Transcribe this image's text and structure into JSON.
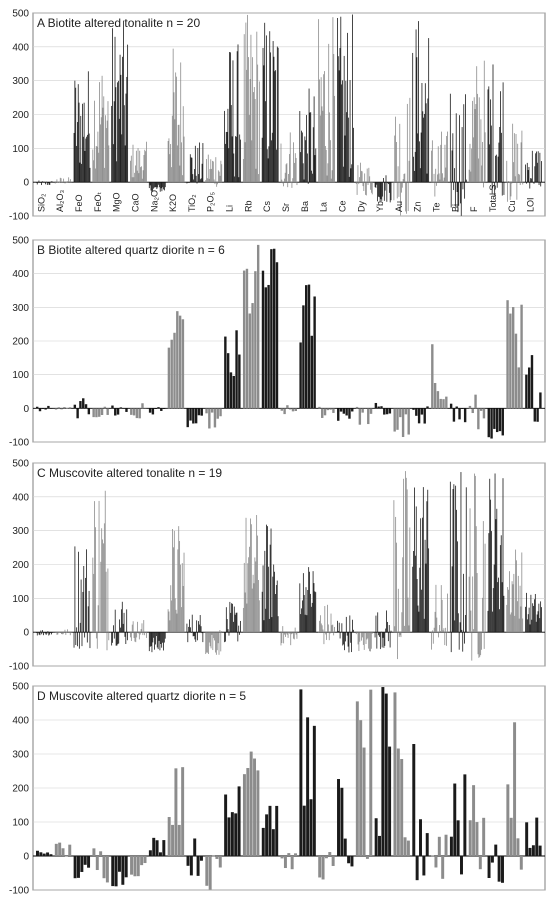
{
  "chart_data": [
    {
      "type": "bar",
      "title": "A   Biotite altered tonalite n = 20",
      "ylim": [
        -100,
        500
      ],
      "yticks": [
        -100,
        0,
        100,
        200,
        300,
        400,
        500
      ],
      "grid": true,
      "categories": [
        "SiO2",
        "Al2O3",
        "FeO",
        "FeOt",
        "MgO",
        "CaO",
        "Na2O",
        "K2O",
        "TiO2",
        "P2O5",
        "Li",
        "Rb",
        "Cs",
        "Sr",
        "Ba",
        "La",
        "Ce",
        "Dy",
        "Yb",
        "Au",
        "Zn",
        "Te",
        "Bi",
        "F",
        "Total S",
        "Cu",
        "LOI"
      ],
      "category_labels": [
        "SiO₂",
        "Al₂O₃",
        "FeO",
        "FeOₜ",
        "MgO",
        "CaO",
        "Na₂O",
        "K2O",
        "TiO₂",
        "P₂O₅",
        "Li",
        "Rb",
        "Cs",
        "Sr",
        "Ba",
        "La",
        "Ce",
        "Dy",
        "Yb",
        "Au",
        "Zn",
        "Te",
        "Bi",
        "F",
        "Total S",
        "Cu",
        "LOI"
      ],
      "series_colors": [
        "#1a1a1a",
        "#8c8c8c"
      ],
      "ranges": [
        {
          "category": "SiO2",
          "n": 20,
          "min": -10,
          "max": 5
        },
        {
          "category": "Al2O3",
          "n": 20,
          "min": -5,
          "max": 15
        },
        {
          "category": "FeO",
          "n": 20,
          "min": 40,
          "max": 350
        },
        {
          "category": "FeOt",
          "n": 20,
          "min": 40,
          "max": 380
        },
        {
          "category": "MgO",
          "n": 20,
          "min": 60,
          "max": 480
        },
        {
          "category": "CaO",
          "n": 20,
          "min": 10,
          "max": 120
        },
        {
          "category": "Na2O",
          "n": 20,
          "min": -30,
          "max": -5
        },
        {
          "category": "K2O",
          "n": 20,
          "min": 20,
          "max": 410
        },
        {
          "category": "TiO2",
          "n": 20,
          "min": -10,
          "max": 120
        },
        {
          "category": "P2O5",
          "n": 20,
          "min": -15,
          "max": 110
        },
        {
          "category": "Li",
          "n": 20,
          "min": 10,
          "max": 420
        },
        {
          "category": "Rb",
          "n": 20,
          "min": 20,
          "max": 500
        },
        {
          "category": "Cs",
          "n": 20,
          "min": 40,
          "max": 500
        },
        {
          "category": "Sr",
          "n": 20,
          "min": -20,
          "max": 170
        },
        {
          "category": "Ba",
          "n": 20,
          "min": -10,
          "max": 280
        },
        {
          "category": "La",
          "n": 20,
          "min": 10,
          "max": 500
        },
        {
          "category": "Ce",
          "n": 20,
          "min": 10,
          "max": 500
        },
        {
          "category": "Dy",
          "n": 20,
          "min": -40,
          "max": 60
        },
        {
          "category": "Yb",
          "n": 20,
          "min": -60,
          "max": 30
        },
        {
          "category": "Au",
          "n": 20,
          "min": -100,
          "max": 280
        },
        {
          "category": "Zn",
          "n": 20,
          "min": 20,
          "max": 500
        },
        {
          "category": "Te",
          "n": 20,
          "min": -60,
          "max": 160
        },
        {
          "category": "Bi",
          "n": 20,
          "min": -100,
          "max": 280
        },
        {
          "category": "F",
          "n": 20,
          "min": -20,
          "max": 380
        },
        {
          "category": "Total S",
          "n": 20,
          "min": -40,
          "max": 380
        },
        {
          "category": "Cu",
          "n": 20,
          "min": -60,
          "max": 180
        },
        {
          "category": "LOI",
          "n": 20,
          "min": -20,
          "max": 120
        }
      ]
    },
    {
      "type": "bar",
      "title": "B   Biotite altered quartz diorite n = 6",
      "ylim": [
        -100,
        500
      ],
      "yticks": [
        -100,
        0,
        100,
        200,
        300,
        400,
        500
      ],
      "grid": true,
      "series_colors": [
        "#1a1a1a",
        "#8c8c8c"
      ],
      "ranges": [
        {
          "category": "SiO2",
          "n": 6,
          "min": -10,
          "max": 10
        },
        {
          "category": "Al2O3",
          "n": 6,
          "min": -5,
          "max": 5
        },
        {
          "category": "FeO",
          "n": 6,
          "min": -30,
          "max": 30
        },
        {
          "category": "FeOt",
          "n": 6,
          "min": -30,
          "max": 10
        },
        {
          "category": "MgO",
          "n": 6,
          "min": -30,
          "max": 30
        },
        {
          "category": "CaO",
          "n": 6,
          "min": -40,
          "max": 20
        },
        {
          "category": "Na2O",
          "n": 6,
          "min": -20,
          "max": 10
        },
        {
          "category": "K2O",
          "n": 6,
          "min": 180,
          "max": 290
        },
        {
          "category": "TiO2",
          "n": 6,
          "min": -60,
          "max": -20
        },
        {
          "category": "P2O5",
          "n": 6,
          "min": -60,
          "max": -10
        },
        {
          "category": "Li",
          "n": 6,
          "min": 60,
          "max": 240
        },
        {
          "category": "Rb",
          "n": 6,
          "min": 250,
          "max": 500
        },
        {
          "category": "Cs",
          "n": 6,
          "min": 300,
          "max": 500
        },
        {
          "category": "Sr",
          "n": 6,
          "min": -20,
          "max": 10
        },
        {
          "category": "Ba",
          "n": 6,
          "min": 180,
          "max": 390
        },
        {
          "category": "La",
          "n": 6,
          "min": -30,
          "max": 20
        },
        {
          "category": "Ce",
          "n": 6,
          "min": -40,
          "max": 30
        },
        {
          "category": "Dy",
          "n": 6,
          "min": -50,
          "max": 10
        },
        {
          "category": "Yb",
          "n": 6,
          "min": -30,
          "max": 20
        },
        {
          "category": "Au",
          "n": 6,
          "min": -90,
          "max": -10
        },
        {
          "category": "Zn",
          "n": 6,
          "min": -90,
          "max": 10
        },
        {
          "category": "Te",
          "n": 6,
          "min": 20,
          "max": 220
        },
        {
          "category": "Bi",
          "n": 6,
          "min": -60,
          "max": 40
        },
        {
          "category": "F",
          "n": 6,
          "min": -80,
          "max": 50
        },
        {
          "category": "Total S",
          "n": 6,
          "min": -90,
          "max": -60
        },
        {
          "category": "Cu",
          "n": 6,
          "min": -70,
          "max": 370
        },
        {
          "category": "LOI",
          "n": 6,
          "min": -40,
          "max": 190
        }
      ]
    },
    {
      "type": "bar",
      "title": "C   Muscovite altered tonalite n = 19",
      "ylim": [
        -100,
        500
      ],
      "yticks": [
        -100,
        0,
        100,
        200,
        300,
        400,
        500
      ],
      "grid": true,
      "series_colors": [
        "#1a1a1a",
        "#8c8c8c"
      ],
      "ranges": [
        {
          "category": "SiO2",
          "n": 19,
          "min": -10,
          "max": 10
        },
        {
          "category": "Al2O3",
          "n": 19,
          "min": -10,
          "max": 10
        },
        {
          "category": "FeO",
          "n": 19,
          "min": -50,
          "max": 290
        },
        {
          "category": "FeOt",
          "n": 19,
          "min": -60,
          "max": 500
        },
        {
          "category": "MgO",
          "n": 19,
          "min": -40,
          "max": 120
        },
        {
          "category": "CaO",
          "n": 19,
          "min": -30,
          "max": 40
        },
        {
          "category": "Na2O",
          "n": 19,
          "min": -60,
          "max": -10
        },
        {
          "category": "K2O",
          "n": 19,
          "min": 30,
          "max": 330
        },
        {
          "category": "TiO2",
          "n": 19,
          "min": -30,
          "max": 60
        },
        {
          "category": "P2O5",
          "n": 19,
          "min": -70,
          "max": 20
        },
        {
          "category": "Li",
          "n": 19,
          "min": -30,
          "max": 90
        },
        {
          "category": "Rb",
          "n": 19,
          "min": 60,
          "max": 360
        },
        {
          "category": "Cs",
          "n": 19,
          "min": 30,
          "max": 330
        },
        {
          "category": "Sr",
          "n": 19,
          "min": -40,
          "max": 20
        },
        {
          "category": "Ba",
          "n": 19,
          "min": 50,
          "max": 210
        },
        {
          "category": "La",
          "n": 19,
          "min": -40,
          "max": 90
        },
        {
          "category": "Ce",
          "n": 19,
          "min": -60,
          "max": 60
        },
        {
          "category": "Dy",
          "n": 19,
          "min": -60,
          "max": 10
        },
        {
          "category": "Yb",
          "n": 19,
          "min": -50,
          "max": 70
        },
        {
          "category": "Au",
          "n": 19,
          "min": -100,
          "max": 500
        },
        {
          "category": "Zn",
          "n": 19,
          "min": 30,
          "max": 500
        },
        {
          "category": "Te",
          "n": 19,
          "min": -60,
          "max": 150
        },
        {
          "category": "Bi",
          "n": 19,
          "min": -80,
          "max": 500
        },
        {
          "category": "F",
          "n": 19,
          "min": -90,
          "max": 500
        },
        {
          "category": "Total S",
          "n": 19,
          "min": 60,
          "max": 500
        },
        {
          "category": "Cu",
          "n": 19,
          "min": 40,
          "max": 270
        },
        {
          "category": "LOI",
          "n": 19,
          "min": 20,
          "max": 120
        }
      ]
    },
    {
      "type": "bar",
      "title": "D   Muscovite altered quartz diorite n = 5",
      "ylim": [
        -100,
        500
      ],
      "yticks": [
        -100,
        0,
        100,
        200,
        300,
        400,
        500
      ],
      "grid": true,
      "series_colors": [
        "#1a1a1a",
        "#8c8c8c"
      ],
      "ranges": [
        {
          "category": "SiO2",
          "n": 5,
          "min": 5,
          "max": 20
        },
        {
          "category": "Al2O3",
          "n": 5,
          "min": -10,
          "max": 45
        },
        {
          "category": "FeO",
          "n": 5,
          "min": -70,
          "max": -20
        },
        {
          "category": "FeOt",
          "n": 5,
          "min": -80,
          "max": 50
        },
        {
          "category": "MgO",
          "n": 5,
          "min": -90,
          "max": -30
        },
        {
          "category": "CaO",
          "n": 5,
          "min": -60,
          "max": -10
        },
        {
          "category": "Na2O",
          "n": 5,
          "min": 10,
          "max": 60
        },
        {
          "category": "K2O",
          "n": 5,
          "min": 90,
          "max": 390
        },
        {
          "category": "TiO2",
          "n": 5,
          "min": -60,
          "max": 60
        },
        {
          "category": "P2O5",
          "n": 5,
          "min": -100,
          "max": 10
        },
        {
          "category": "Li",
          "n": 5,
          "min": -60,
          "max": 490
        },
        {
          "category": "Rb",
          "n": 5,
          "min": 240,
          "max": 420
        },
        {
          "category": "Cs",
          "n": 5,
          "min": 50,
          "max": 300
        },
        {
          "category": "Sr",
          "n": 5,
          "min": -40,
          "max": 20
        },
        {
          "category": "Ba",
          "n": 5,
          "min": 80,
          "max": 500
        },
        {
          "category": "La",
          "n": 5,
          "min": -70,
          "max": 20
        },
        {
          "category": "Ce",
          "n": 5,
          "min": -60,
          "max": 270
        },
        {
          "category": "Dy",
          "n": 5,
          "min": -30,
          "max": 500
        },
        {
          "category": "Yb",
          "n": 5,
          "min": -40,
          "max": 500
        },
        {
          "category": "Au",
          "n": 5,
          "min": -80,
          "max": 500
        },
        {
          "category": "Zn",
          "n": 5,
          "min": -100,
          "max": 360
        },
        {
          "category": "Te",
          "n": 5,
          "min": -80,
          "max": 150
        },
        {
          "category": "Bi",
          "n": 5,
          "min": -80,
          "max": 500
        },
        {
          "category": "F",
          "n": 5,
          "min": -70,
          "max": 500
        },
        {
          "category": "Total S",
          "n": 5,
          "min": -90,
          "max": 40
        },
        {
          "category": "Cu",
          "n": 5,
          "min": -70,
          "max": 400
        },
        {
          "category": "LOI",
          "n": 5,
          "min": 20,
          "max": 120
        }
      ]
    }
  ]
}
